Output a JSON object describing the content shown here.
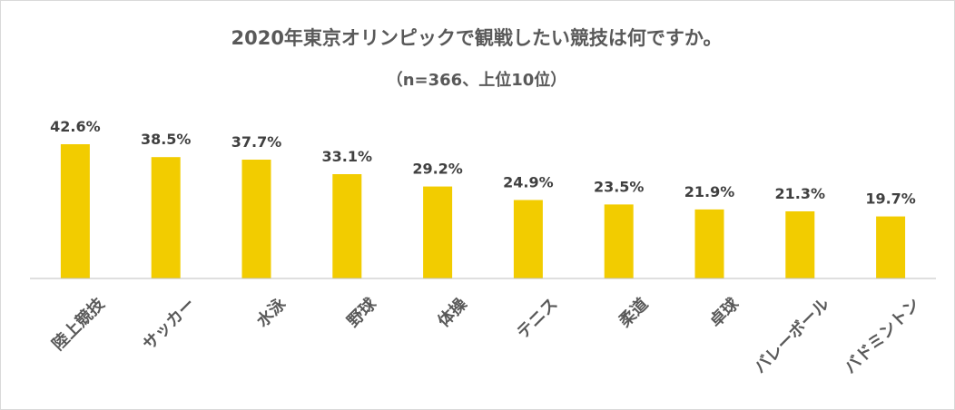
{
  "chart_data": {
    "type": "bar",
    "title": "2020年東京オリンピックで観戦したい競技は何ですか。",
    "subtitle": "（n=366、上位10位）",
    "categories": [
      "陸上競技",
      "サッカー",
      "水泳",
      "野球",
      "体操",
      "テニス",
      "柔道",
      "卓球",
      "バレーボール",
      "バドミントン"
    ],
    "values": [
      42.6,
      38.5,
      37.7,
      33.1,
      29.2,
      24.9,
      23.5,
      21.9,
      21.3,
      19.7
    ],
    "value_labels": [
      "42.6%",
      "38.5%",
      "37.7%",
      "33.1%",
      "29.2%",
      "24.9%",
      "23.5%",
      "21.9%",
      "21.3%",
      "19.7%"
    ],
    "xlabel": "",
    "ylabel": "",
    "ylim": [
      0,
      45
    ],
    "grid": false,
    "legend": "none",
    "bar_color": "#F2CC00",
    "axis_color": "#BFBFBF",
    "text_color": "#595959"
  }
}
